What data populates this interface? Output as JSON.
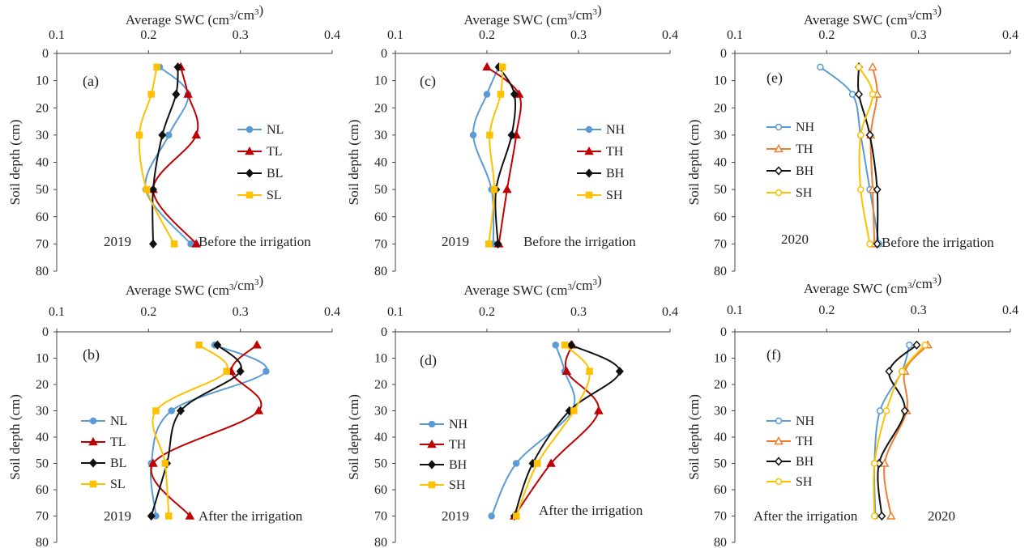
{
  "colors": {
    "blue": "#5b9bd5",
    "red": "#c00000",
    "black": "#111111",
    "gold": "#ffc000",
    "orange": "#ed7d31"
  },
  "chart_data": [
    {
      "type": "line",
      "panel": "(a)",
      "xlabel": "Average SWC (cm³/cm³)",
      "ylabel": "Soil depth (cm)",
      "xlim": [
        0.1,
        0.4
      ],
      "ylim": [
        0,
        80
      ],
      "y_inverted": true,
      "x_ticks": [
        "0.1",
        "0.2",
        "0.3",
        "0.4"
      ],
      "y_ticks": [
        "0",
        "10",
        "20",
        "30",
        "40",
        "50",
        "60",
        "70",
        "80"
      ],
      "notes": [
        "2019",
        "Before the  irrigation"
      ],
      "legend_position": "right",
      "series": [
        {
          "name": "NL",
          "color": "blue",
          "marker": "circle",
          "filled": true,
          "depth": [
            5,
            15,
            30,
            50,
            70
          ],
          "swc": [
            0.212,
            0.243,
            0.222,
            0.197,
            0.246
          ]
        },
        {
          "name": "TL",
          "color": "red",
          "marker": "triangle",
          "filled": true,
          "depth": [
            5,
            15,
            30,
            50,
            70
          ],
          "swc": [
            0.235,
            0.243,
            0.252,
            0.205,
            0.252
          ]
        },
        {
          "name": "BL",
          "color": "black",
          "marker": "diamond",
          "filled": true,
          "depth": [
            5,
            15,
            30,
            50,
            70
          ],
          "swc": [
            0.232,
            0.23,
            0.215,
            0.205,
            0.205
          ]
        },
        {
          "name": "SL",
          "color": "gold",
          "marker": "square",
          "filled": true,
          "depth": [
            5,
            15,
            30,
            50,
            70
          ],
          "swc": [
            0.209,
            0.203,
            0.19,
            0.198,
            0.228
          ]
        }
      ]
    },
    {
      "type": "line",
      "panel": "(c)",
      "xlabel": "Average SWC (cm³/cm³)",
      "ylabel": "Soil depth (cm)",
      "xlim": [
        0.1,
        0.4
      ],
      "ylim": [
        0,
        80
      ],
      "y_inverted": true,
      "x_ticks": [
        "0.1",
        "0.2",
        "0.3",
        "0.4"
      ],
      "y_ticks": [
        "0",
        "10",
        "20",
        "30",
        "40",
        "50",
        "60",
        "70",
        "80"
      ],
      "notes": [
        "2019",
        "Before the irrigation"
      ],
      "legend_position": "right",
      "series": [
        {
          "name": "NH",
          "color": "blue",
          "marker": "circle",
          "filled": true,
          "depth": [
            5,
            15,
            30,
            50,
            70
          ],
          "swc": [
            0.213,
            0.2,
            0.185,
            0.205,
            0.207
          ]
        },
        {
          "name": "TH",
          "color": "red",
          "marker": "triangle",
          "filled": true,
          "depth": [
            5,
            15,
            30,
            50,
            70
          ],
          "swc": [
            0.2,
            0.235,
            0.232,
            0.222,
            0.213
          ]
        },
        {
          "name": "BH",
          "color": "black",
          "marker": "diamond",
          "filled": true,
          "depth": [
            5,
            15,
            30,
            50,
            70
          ],
          "swc": [
            0.213,
            0.23,
            0.227,
            0.21,
            0.212
          ]
        },
        {
          "name": "SH",
          "color": "gold",
          "marker": "square",
          "filled": true,
          "depth": [
            5,
            15,
            30,
            50,
            70
          ],
          "swc": [
            0.217,
            0.215,
            0.203,
            0.208,
            0.202
          ]
        }
      ]
    },
    {
      "type": "line",
      "panel": "(e)",
      "xlabel": "Average SWC (cm³/cm³)",
      "ylabel": "Soil depth (cm)",
      "xlim": [
        0.1,
        0.4
      ],
      "ylim": [
        0,
        80
      ],
      "y_inverted": true,
      "x_ticks": [
        "0.1",
        "0.2",
        "0.3",
        "0.4"
      ],
      "y_ticks": [
        "0",
        "10",
        "20",
        "30",
        "40",
        "50",
        "60",
        "70",
        "80"
      ],
      "notes": [
        "2020",
        "Before the irrigation"
      ],
      "legend_position": "left",
      "series": [
        {
          "name": "NH",
          "color": "blue",
          "marker": "circle",
          "filled": false,
          "depth": [
            5,
            15,
            30,
            50,
            70
          ],
          "swc": [
            0.193,
            0.228,
            0.237,
            0.247,
            0.257
          ]
        },
        {
          "name": "TH",
          "color": "orange",
          "marker": "triangle",
          "filled": false,
          "depth": [
            5,
            15,
            30,
            50,
            70
          ],
          "swc": [
            0.25,
            0.255,
            0.248,
            0.25,
            0.252
          ]
        },
        {
          "name": "BH",
          "color": "black",
          "marker": "diamond",
          "filled": false,
          "depth": [
            5,
            15,
            30,
            50,
            70
          ],
          "swc": [
            0.235,
            0.235,
            0.247,
            0.255,
            0.255
          ]
        },
        {
          "name": "SH",
          "color": "gold",
          "marker": "circle",
          "filled": false,
          "depth": [
            5,
            15,
            30,
            50,
            70
          ],
          "swc": [
            0.235,
            0.25,
            0.237,
            0.237,
            0.247
          ]
        }
      ]
    },
    {
      "type": "line",
      "panel": "(b)",
      "xlabel": "Average SWC (cm³/cm³)",
      "ylabel": "Soil depth (cm)",
      "xlim": [
        0.1,
        0.4
      ],
      "ylim": [
        0,
        80
      ],
      "y_inverted": true,
      "x_ticks": [
        "0.1",
        "0.2",
        "0.3",
        "0.4"
      ],
      "y_ticks": [
        "0",
        "10",
        "20",
        "30",
        "40",
        "50",
        "60",
        "70",
        "80"
      ],
      "notes": [
        "2019",
        "After the irrigation"
      ],
      "legend_position": "left",
      "series": [
        {
          "name": "NL",
          "color": "blue",
          "marker": "circle",
          "filled": true,
          "depth": [
            5,
            15,
            30,
            50,
            70
          ],
          "swc": [
            0.272,
            0.328,
            0.225,
            0.203,
            0.208
          ]
        },
        {
          "name": "TL",
          "color": "red",
          "marker": "triangle",
          "filled": true,
          "depth": [
            5,
            15,
            30,
            50,
            70
          ],
          "swc": [
            0.318,
            0.29,
            0.32,
            0.205,
            0.245
          ]
        },
        {
          "name": "BL",
          "color": "black",
          "marker": "diamond",
          "filled": true,
          "depth": [
            5,
            15,
            30,
            50,
            70
          ],
          "swc": [
            0.275,
            0.3,
            0.235,
            0.22,
            0.203
          ]
        },
        {
          "name": "SL",
          "color": "gold",
          "marker": "square",
          "filled": true,
          "depth": [
            5,
            15,
            30,
            50,
            70
          ],
          "swc": [
            0.255,
            0.285,
            0.208,
            0.218,
            0.222
          ]
        }
      ]
    },
    {
      "type": "line",
      "panel": "(d)",
      "xlabel": "Average SWC (cm³/cm³)",
      "ylabel": "Soil depth (cm)",
      "xlim": [
        0.1,
        0.4
      ],
      "ylim": [
        0,
        80
      ],
      "y_inverted": true,
      "x_ticks": [
        "0.1",
        "0.2",
        "0.3",
        "0.4"
      ],
      "y_ticks": [
        "0",
        "10",
        "20",
        "30",
        "40",
        "50",
        "60",
        "70",
        "80"
      ],
      "notes": [
        "2019",
        "After the irrigation"
      ],
      "legend_position": "left",
      "series": [
        {
          "name": "NH",
          "color": "blue",
          "marker": "circle",
          "filled": true,
          "depth": [
            5,
            15,
            30,
            50,
            70
          ],
          "swc": [
            0.275,
            0.285,
            0.293,
            0.232,
            0.205
          ]
        },
        {
          "name": "TH",
          "color": "red",
          "marker": "triangle",
          "filled": true,
          "depth": [
            5,
            15,
            30,
            50,
            70
          ],
          "swc": [
            0.293,
            0.287,
            0.322,
            0.27,
            0.23
          ]
        },
        {
          "name": "BH",
          "color": "black",
          "marker": "diamond",
          "filled": true,
          "depth": [
            5,
            15,
            30,
            50,
            70
          ],
          "swc": [
            0.292,
            0.345,
            0.29,
            0.25,
            0.23
          ]
        },
        {
          "name": "SH",
          "color": "gold",
          "marker": "square",
          "filled": true,
          "depth": [
            5,
            15,
            30,
            50,
            70
          ],
          "swc": [
            0.285,
            0.312,
            0.295,
            0.255,
            0.232
          ]
        }
      ]
    },
    {
      "type": "line",
      "panel": "(f)",
      "xlabel": "Average SWC (cm³/cm³)",
      "ylabel": "Soil depth (cm)",
      "xlim": [
        0.1,
        0.4
      ],
      "ylim": [
        0,
        80
      ],
      "y_inverted": true,
      "x_ticks": [
        "0.1",
        "0.2",
        "0.3",
        "0.4"
      ],
      "y_ticks": [
        "0",
        "10",
        "20",
        "30",
        "40",
        "50",
        "60",
        "70",
        "80"
      ],
      "notes": [
        "After the irrigation",
        "2020"
      ],
      "legend_position": "left",
      "series": [
        {
          "name": "NH",
          "color": "blue",
          "marker": "circle",
          "filled": false,
          "depth": [
            5,
            15,
            30,
            50,
            70
          ],
          "swc": [
            0.29,
            0.282,
            0.258,
            0.252,
            0.253
          ]
        },
        {
          "name": "TH",
          "color": "orange",
          "marker": "triangle",
          "filled": false,
          "depth": [
            5,
            15,
            30,
            50,
            70
          ],
          "swc": [
            0.31,
            0.285,
            0.287,
            0.263,
            0.27
          ]
        },
        {
          "name": "BH",
          "color": "black",
          "marker": "diamond",
          "filled": false,
          "depth": [
            5,
            15,
            30,
            50,
            70
          ],
          "swc": [
            0.298,
            0.268,
            0.285,
            0.257,
            0.26
          ]
        },
        {
          "name": "SH",
          "color": "gold",
          "marker": "circle",
          "filled": false,
          "depth": [
            5,
            15,
            30,
            50,
            70
          ],
          "swc": [
            0.307,
            0.282,
            0.265,
            0.252,
            0.252
          ]
        }
      ]
    }
  ]
}
